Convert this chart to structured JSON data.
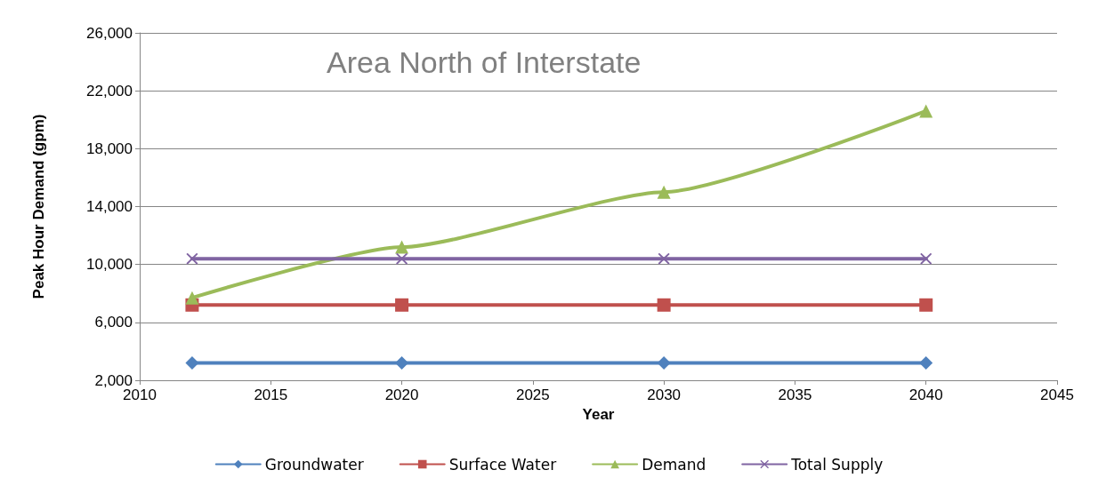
{
  "chart_data": {
    "type": "line",
    "title": "Area North of Interstate",
    "xlabel": "Year",
    "ylabel": "Peak Hour Demand (gpm)",
    "x": [
      2012,
      2020,
      2030,
      2040
    ],
    "series": [
      {
        "name": "Groundwater",
        "color": "#4f81bd",
        "marker": "diamond",
        "values": [
          3200,
          3200,
          3200,
          3200
        ]
      },
      {
        "name": "Surface Water",
        "color": "#c0504d",
        "marker": "square",
        "values": [
          7200,
          7200,
          7200,
          7200
        ]
      },
      {
        "name": "Demand",
        "color": "#9bbb59",
        "marker": "triangle",
        "values": [
          7700,
          11200,
          15000,
          20600
        ]
      },
      {
        "name": "Total Supply",
        "color": "#8064a2",
        "marker": "cross",
        "values": [
          10400,
          10400,
          10400,
          10400
        ]
      }
    ],
    "xlim": [
      2010,
      2045
    ],
    "xticks": [
      2010,
      2015,
      2020,
      2025,
      2030,
      2035,
      2040,
      2045
    ],
    "ylim": [
      2000,
      26000
    ],
    "yticks": [
      {
        "value": 2000,
        "label": "2,000"
      },
      {
        "value": 6000,
        "label": "6,000"
      },
      {
        "value": 10000,
        "label": "10,000"
      },
      {
        "value": 14000,
        "label": "14,000"
      },
      {
        "value": 18000,
        "label": "18,000"
      },
      {
        "value": 22000,
        "label": "22,000"
      },
      {
        "value": 26000,
        "label": "26,000"
      }
    ],
    "grid": "y",
    "legend": "bottom",
    "line_style": "solid"
  }
}
